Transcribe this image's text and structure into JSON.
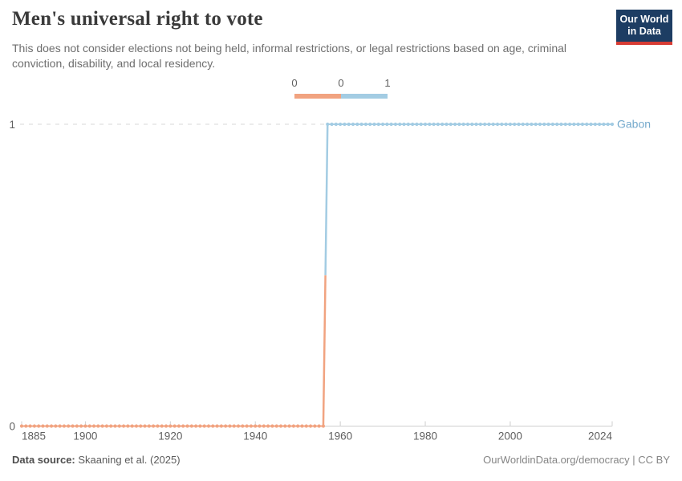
{
  "header": {
    "title": "Men's universal right to vote",
    "subtitle": "This does not consider elections not being held, informal restrictions, or legal restrictions based on age, criminal conviction, disability, and local residency.",
    "logo": {
      "line1": "Our World",
      "line2": "in Data",
      "bg_color": "#1D3D63",
      "accent_color": "#D73C34"
    }
  },
  "chart_data": {
    "type": "line",
    "title": "Men's universal right to vote",
    "entity": "Gabon",
    "x_range": [
      1885,
      2024
    ],
    "y_range": [
      0,
      1
    ],
    "x_ticks": [
      1885,
      1900,
      1920,
      1940,
      1960,
      1980,
      2000,
      2024
    ],
    "y_ticks": [
      0,
      1
    ],
    "grid": "dashed gridline at y=1, solid axis at y=0",
    "marker": "dot-per-year",
    "legend": {
      "position": "top-center",
      "edge_labels": [
        "0",
        "0",
        "1"
      ],
      "bin_colors": [
        "#F1A380",
        "#A3CCE3"
      ]
    },
    "series": [
      {
        "name": "Gabon",
        "label_color": "#74A9CC",
        "segments": [
          {
            "value": 0,
            "start_year": 1885,
            "end_year": 1956,
            "color": "#F1A380"
          },
          {
            "value": 1,
            "start_year": 1957,
            "end_year": 2024,
            "color": "#A3CCE3"
          }
        ]
      }
    ]
  },
  "footer": {
    "source_label": "Data source:",
    "source_value": "Skaaning et al. (2025)",
    "right_text": "OurWorldinData.org/democracy | CC BY"
  }
}
